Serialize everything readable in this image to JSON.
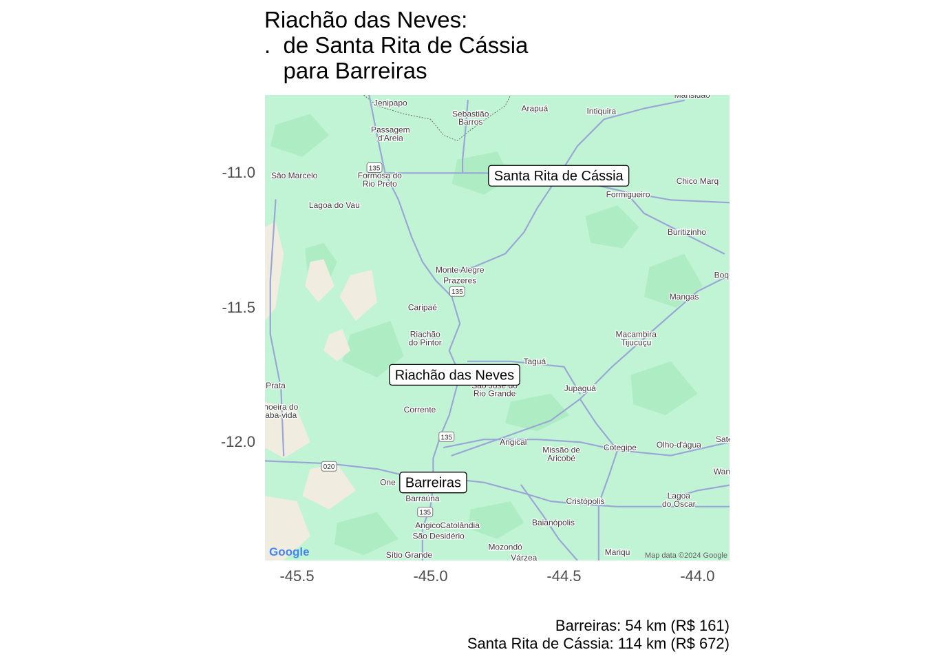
{
  "title": "Riachão das Neves:\n.  de Santa Rita de Cássia\n   para Barreiras",
  "map": {
    "colors": {
      "land": "#c1f4d4",
      "land_dark": "#aeecc4",
      "land_light": "#d2f9e2",
      "desert": "#f1ece0",
      "road": "#9aa7d6",
      "label_border": "#000000",
      "label_bg": "#ffffff",
      "place_text": "#3c3c3c"
    },
    "x_ticks": [
      "-45.5",
      "-45.0",
      "-44.5",
      "-44.0"
    ],
    "y_ticks": [
      "-11.0",
      "-11.5",
      "-12.0"
    ],
    "x_tick_values": [
      -45.5,
      -45.0,
      -44.5,
      -44.0
    ],
    "y_tick_values": [
      -11.0,
      -11.5,
      -12.0
    ],
    "lon_range": [
      -45.62,
      -43.88
    ],
    "lat_range": [
      -12.44,
      -10.71
    ],
    "cities": [
      {
        "label": "Santa Rita de Cássia",
        "lon": -44.52,
        "lat": -11.01
      },
      {
        "label": "Riachão das Neves",
        "lon": -44.91,
        "lat": -11.75
      },
      {
        "label": "Barreiras",
        "lon": -44.99,
        "lat": -12.15
      }
    ],
    "places": [
      {
        "name": "Jenipapo",
        "lon": -45.15,
        "lat": -10.75
      },
      {
        "name": "Sebastião",
        "lon": -44.85,
        "lat": -10.79
      },
      {
        "name": "Barros",
        "lon": -44.85,
        "lat": -10.82
      },
      {
        "name": "Arapuá",
        "lon": -44.61,
        "lat": -10.77
      },
      {
        "name": "Intiquira",
        "lon": -44.36,
        "lat": -10.78
      },
      {
        "name": "Mansidão",
        "lon": -44.02,
        "lat": -10.72
      },
      {
        "name": "Passagem",
        "lon": -45.15,
        "lat": -10.85
      },
      {
        "name": "d'Areia",
        "lon": -45.15,
        "lat": -10.88
      },
      {
        "name": "São Marcelo",
        "lon": -45.51,
        "lat": -11.02
      },
      {
        "name": "Formosa do",
        "lon": -45.19,
        "lat": -11.02
      },
      {
        "name": "Rio Preto",
        "lon": -45.19,
        "lat": -11.05
      },
      {
        "name": "Chico Marq",
        "lon": -44.0,
        "lat": -11.04
      },
      {
        "name": "Formigueiro",
        "lon": -44.26,
        "lat": -11.09
      },
      {
        "name": "Lagoa do Vau",
        "lon": -45.36,
        "lat": -11.13
      },
      {
        "name": "Buritizinho",
        "lon": -44.04,
        "lat": -11.23
      },
      {
        "name": "Monte Alegre",
        "lon": -44.89,
        "lat": -11.37
      },
      {
        "name": "Prazeres",
        "lon": -44.89,
        "lat": -11.41
      },
      {
        "name": "Boq",
        "lon": -43.91,
        "lat": -11.39
      },
      {
        "name": "Mangas",
        "lon": -44.05,
        "lat": -11.47
      },
      {
        "name": "Caripaé",
        "lon": -45.03,
        "lat": -11.51
      },
      {
        "name": "Riachão",
        "lon": -45.02,
        "lat": -11.61
      },
      {
        "name": "do Pintor",
        "lon": -45.02,
        "lat": -11.64
      },
      {
        "name": "Macambira",
        "lon": -44.23,
        "lat": -11.61
      },
      {
        "name": "Tijucuçu",
        "lon": -44.23,
        "lat": -11.64
      },
      {
        "name": "Taguá",
        "lon": -44.61,
        "lat": -11.71
      },
      {
        "name": "Prata",
        "lon": -45.58,
        "lat": -11.8
      },
      {
        "name": "São José do",
        "lon": -44.76,
        "lat": -11.8
      },
      {
        "name": "Rio Grande",
        "lon": -44.76,
        "lat": -11.83
      },
      {
        "name": "Jupaguá",
        "lon": -44.44,
        "lat": -11.81
      },
      {
        "name": "hoeira do",
        "lon": -45.56,
        "lat": -11.88
      },
      {
        "name": "aba-vida",
        "lon": -45.56,
        "lat": -11.91
      },
      {
        "name": "Corrente",
        "lon": -45.04,
        "lat": -11.89
      },
      {
        "name": "Angical",
        "lon": -44.69,
        "lat": -12.01
      },
      {
        "name": "Missão de",
        "lon": -44.51,
        "lat": -12.04
      },
      {
        "name": "Aricobé",
        "lon": -44.51,
        "lat": -12.07
      },
      {
        "name": "Cotegipe",
        "lon": -44.29,
        "lat": -12.03
      },
      {
        "name": "Olho-d'água",
        "lon": -44.07,
        "lat": -12.02
      },
      {
        "name": "Sate",
        "lon": -43.9,
        "lat": -12.0
      },
      {
        "name": "Wand",
        "lon": -43.9,
        "lat": -12.12
      },
      {
        "name": "Barraúna",
        "lon": -45.03,
        "lat": -12.22
      },
      {
        "name": "Cristópolis",
        "lon": -44.42,
        "lat": -12.23
      },
      {
        "name": "Lagoa",
        "lon": -44.07,
        "lat": -12.21
      },
      {
        "name": "do Oscar",
        "lon": -44.07,
        "lat": -12.24
      },
      {
        "name": "Angico",
        "lon": -45.01,
        "lat": -12.32
      },
      {
        "name": "Catolândia",
        "lon": -44.89,
        "lat": -12.32
      },
      {
        "name": "São Desidério",
        "lon": -44.97,
        "lat": -12.36
      },
      {
        "name": "Baianópolis",
        "lon": -44.54,
        "lat": -12.31
      },
      {
        "name": "Mozondó",
        "lon": -44.72,
        "lat": -12.4
      },
      {
        "name": "Sítio Grande",
        "lon": -45.08,
        "lat": -12.43
      },
      {
        "name": "Várzea",
        "lon": -44.65,
        "lat": -12.44
      },
      {
        "name": "Mariqu",
        "lon": -44.3,
        "lat": -12.42
      },
      {
        "name": "One",
        "lon": -45.16,
        "lat": -12.16
      }
    ],
    "shields": [
      {
        "text": "135",
        "lon": -45.21,
        "lat": -10.98
      },
      {
        "text": "135",
        "lon": -44.9,
        "lat": -11.44
      },
      {
        "text": "135",
        "lon": -44.94,
        "lat": -11.98
      },
      {
        "text": "020",
        "lon": -45.38,
        "lat": -12.09
      },
      {
        "text": "135",
        "lon": -45.02,
        "lat": -12.26
      }
    ],
    "roads": [
      [
        [
          -45.23,
          -10.71
        ],
        [
          -45.2,
          -10.86
        ],
        [
          -45.17,
          -11.0
        ],
        [
          -45.12,
          -11.1
        ],
        [
          -45.07,
          -11.24
        ],
        [
          -45.03,
          -11.33
        ],
        [
          -44.98,
          -11.4
        ],
        [
          -44.92,
          -11.46
        ],
        [
          -44.89,
          -11.56
        ],
        [
          -44.93,
          -11.66
        ],
        [
          -44.89,
          -11.75
        ],
        [
          -44.93,
          -11.9
        ],
        [
          -44.96,
          -11.97
        ],
        [
          -44.99,
          -12.06
        ],
        [
          -44.99,
          -12.16
        ],
        [
          -45.0,
          -12.24
        ],
        [
          -45.03,
          -12.32
        ],
        [
          -45.03,
          -12.44
        ]
      ],
      [
        [
          -45.62,
          -12.07
        ],
        [
          -45.38,
          -12.08
        ],
        [
          -45.2,
          -12.1
        ],
        [
          -45.07,
          -12.13
        ],
        [
          -44.99,
          -12.15
        ],
        [
          -44.89,
          -12.14
        ],
        [
          -44.8,
          -12.15
        ],
        [
          -44.65,
          -12.19
        ],
        [
          -44.55,
          -12.22
        ],
        [
          -44.45,
          -12.23
        ],
        [
          -44.3,
          -12.24
        ],
        [
          -44.1,
          -12.24
        ],
        [
          -43.88,
          -12.24
        ]
      ],
      [
        [
          -44.52,
          -11.01
        ],
        [
          -44.6,
          -11.13
        ],
        [
          -44.65,
          -11.22
        ],
        [
          -44.72,
          -11.3
        ],
        [
          -44.84,
          -11.35
        ],
        [
          -44.93,
          -11.37
        ]
      ],
      [
        [
          -45.17,
          -11.0
        ],
        [
          -45.0,
          -11.0
        ],
        [
          -44.8,
          -11.0
        ],
        [
          -44.52,
          -11.01
        ],
        [
          -44.4,
          -11.04
        ],
        [
          -44.27,
          -11.07
        ],
        [
          -44.1,
          -11.1
        ],
        [
          -43.88,
          -11.11
        ]
      ],
      [
        [
          -44.95,
          -12.02
        ],
        [
          -44.8,
          -11.99
        ],
        [
          -44.6,
          -11.99
        ],
        [
          -44.44,
          -12.0
        ],
        [
          -44.3,
          -12.03
        ],
        [
          -44.1,
          -12.05
        ],
        [
          -43.88,
          -12.0
        ]
      ],
      [
        [
          -44.92,
          -12.05
        ],
        [
          -44.72,
          -11.98
        ],
        [
          -44.55,
          -11.92
        ],
        [
          -44.44,
          -11.84
        ],
        [
          -44.32,
          -11.72
        ],
        [
          -44.15,
          -11.57
        ],
        [
          -44.0,
          -11.44
        ],
        [
          -43.88,
          -11.38
        ]
      ],
      [
        [
          -44.44,
          -11.84
        ],
        [
          -44.38,
          -11.93
        ],
        [
          -44.3,
          -12.03
        ],
        [
          -44.33,
          -12.12
        ],
        [
          -44.37,
          -12.23
        ],
        [
          -44.37,
          -12.44
        ]
      ],
      [
        [
          -44.86,
          -11.7
        ],
        [
          -44.7,
          -11.7
        ],
        [
          -44.5,
          -11.72
        ],
        [
          -44.44,
          -11.82
        ]
      ],
      [
        [
          -44.86,
          -10.73
        ],
        [
          -44.87,
          -10.85
        ],
        [
          -44.88,
          -10.95
        ],
        [
          -44.88,
          -11.0
        ]
      ],
      [
        [
          -45.58,
          -11.1
        ],
        [
          -45.6,
          -11.4
        ],
        [
          -45.6,
          -11.6
        ],
        [
          -45.56,
          -11.8
        ],
        [
          -45.55,
          -12.05
        ]
      ],
      [
        [
          -44.52,
          -11.01
        ],
        [
          -44.45,
          -10.9
        ],
        [
          -44.35,
          -10.8
        ],
        [
          -44.2,
          -10.76
        ],
        [
          -44.05,
          -10.73
        ]
      ],
      [
        [
          -44.27,
          -11.07
        ],
        [
          -44.2,
          -11.15
        ],
        [
          -44.1,
          -11.2
        ],
        [
          -44.0,
          -11.25
        ],
        [
          -43.9,
          -11.3
        ]
      ],
      [
        [
          -44.66,
          -12.16
        ],
        [
          -44.58,
          -12.27
        ],
        [
          -44.52,
          -12.36
        ],
        [
          -44.45,
          -12.44
        ]
      ],
      [
        [
          -43.88,
          -12.16
        ],
        [
          -44.0,
          -12.18
        ],
        [
          -44.1,
          -12.21
        ]
      ]
    ],
    "dark_patches": [
      [
        [
          -45.47,
          -11.28
        ],
        [
          -45.4,
          -11.26
        ],
        [
          -45.35,
          -11.33
        ],
        [
          -45.38,
          -11.4
        ],
        [
          -45.46,
          -11.38
        ]
      ],
      [
        [
          -44.42,
          -11.16
        ],
        [
          -44.3,
          -11.12
        ],
        [
          -44.22,
          -11.2
        ],
        [
          -44.28,
          -11.28
        ],
        [
          -44.4,
          -11.26
        ]
      ],
      [
        [
          -44.18,
          -11.35
        ],
        [
          -44.05,
          -11.3
        ],
        [
          -43.98,
          -11.42
        ],
        [
          -44.08,
          -11.5
        ],
        [
          -44.2,
          -11.46
        ]
      ],
      [
        [
          -44.7,
          -11.85
        ],
        [
          -44.55,
          -11.82
        ],
        [
          -44.48,
          -11.9
        ],
        [
          -44.6,
          -11.96
        ],
        [
          -44.72,
          -11.93
        ]
      ],
      [
        [
          -45.3,
          -11.6
        ],
        [
          -45.15,
          -11.55
        ],
        [
          -45.1,
          -11.68
        ],
        [
          -45.2,
          -11.76
        ],
        [
          -45.33,
          -11.7
        ]
      ],
      [
        [
          -44.25,
          -11.75
        ],
        [
          -44.1,
          -11.7
        ],
        [
          -44.0,
          -11.82
        ],
        [
          -44.12,
          -11.9
        ],
        [
          -44.24,
          -11.86
        ]
      ],
      [
        [
          -45.35,
          -12.3
        ],
        [
          -45.2,
          -12.26
        ],
        [
          -45.12,
          -12.36
        ],
        [
          -45.25,
          -12.42
        ],
        [
          -45.36,
          -12.38
        ]
      ],
      [
        [
          -44.85,
          -12.25
        ],
        [
          -44.7,
          -12.22
        ],
        [
          -44.65,
          -12.3
        ],
        [
          -44.75,
          -12.36
        ],
        [
          -44.86,
          -12.32
        ]
      ],
      [
        [
          -44.9,
          -10.95
        ],
        [
          -44.75,
          -10.92
        ],
        [
          -44.7,
          -11.02
        ],
        [
          -44.8,
          -11.08
        ],
        [
          -44.92,
          -11.04
        ]
      ],
      [
        [
          -45.58,
          -10.82
        ],
        [
          -45.45,
          -10.78
        ],
        [
          -45.38,
          -10.86
        ],
        [
          -45.48,
          -10.94
        ],
        [
          -45.6,
          -10.9
        ]
      ]
    ],
    "desert_patches": [
      [
        [
          -45.62,
          -11.2
        ],
        [
          -45.58,
          -11.18
        ],
        [
          -45.55,
          -11.3
        ],
        [
          -45.58,
          -11.5
        ],
        [
          -45.62,
          -11.55
        ]
      ],
      [
        [
          -45.45,
          -11.33
        ],
        [
          -45.4,
          -11.32
        ],
        [
          -45.36,
          -11.42
        ],
        [
          -45.42,
          -11.48
        ],
        [
          -45.47,
          -11.42
        ]
      ],
      [
        [
          -45.3,
          -11.38
        ],
        [
          -45.22,
          -11.36
        ],
        [
          -45.2,
          -11.48
        ],
        [
          -45.28,
          -11.55
        ],
        [
          -45.34,
          -11.46
        ]
      ],
      [
        [
          -45.62,
          -11.85
        ],
        [
          -45.5,
          -11.88
        ],
        [
          -45.45,
          -12.0
        ],
        [
          -45.55,
          -12.06
        ],
        [
          -45.62,
          -12.02
        ]
      ],
      [
        [
          -45.45,
          -12.1
        ],
        [
          -45.35,
          -12.08
        ],
        [
          -45.28,
          -12.18
        ],
        [
          -45.38,
          -12.25
        ],
        [
          -45.48,
          -12.2
        ]
      ],
      [
        [
          -45.62,
          -12.2
        ],
        [
          -45.5,
          -12.22
        ],
        [
          -45.45,
          -12.35
        ],
        [
          -45.55,
          -12.44
        ],
        [
          -45.62,
          -12.44
        ]
      ],
      [
        [
          -45.38,
          -11.6
        ],
        [
          -45.33,
          -11.58
        ],
        [
          -45.3,
          -11.66
        ],
        [
          -45.35,
          -11.7
        ],
        [
          -45.4,
          -11.66
        ]
      ]
    ],
    "state_border": [
      [
        -45.25,
        -10.71
      ],
      [
        -45.2,
        -10.75
      ],
      [
        -45.1,
        -10.78
      ],
      [
        -45.0,
        -10.8
      ],
      [
        -44.95,
        -10.86
      ],
      [
        -44.9,
        -10.88
      ],
      [
        -44.85,
        -10.84
      ],
      [
        -44.78,
        -10.79
      ],
      [
        -44.72,
        -10.75
      ],
      [
        -44.7,
        -10.71
      ]
    ],
    "google_logo": "Google",
    "attribution": "Map data ©2024 Google"
  },
  "caption": {
    "line1": "Barreiras: 54 km (R$ 161)",
    "line2": "Santa Rita de Cássia: 114 km (R$ 672)"
  }
}
